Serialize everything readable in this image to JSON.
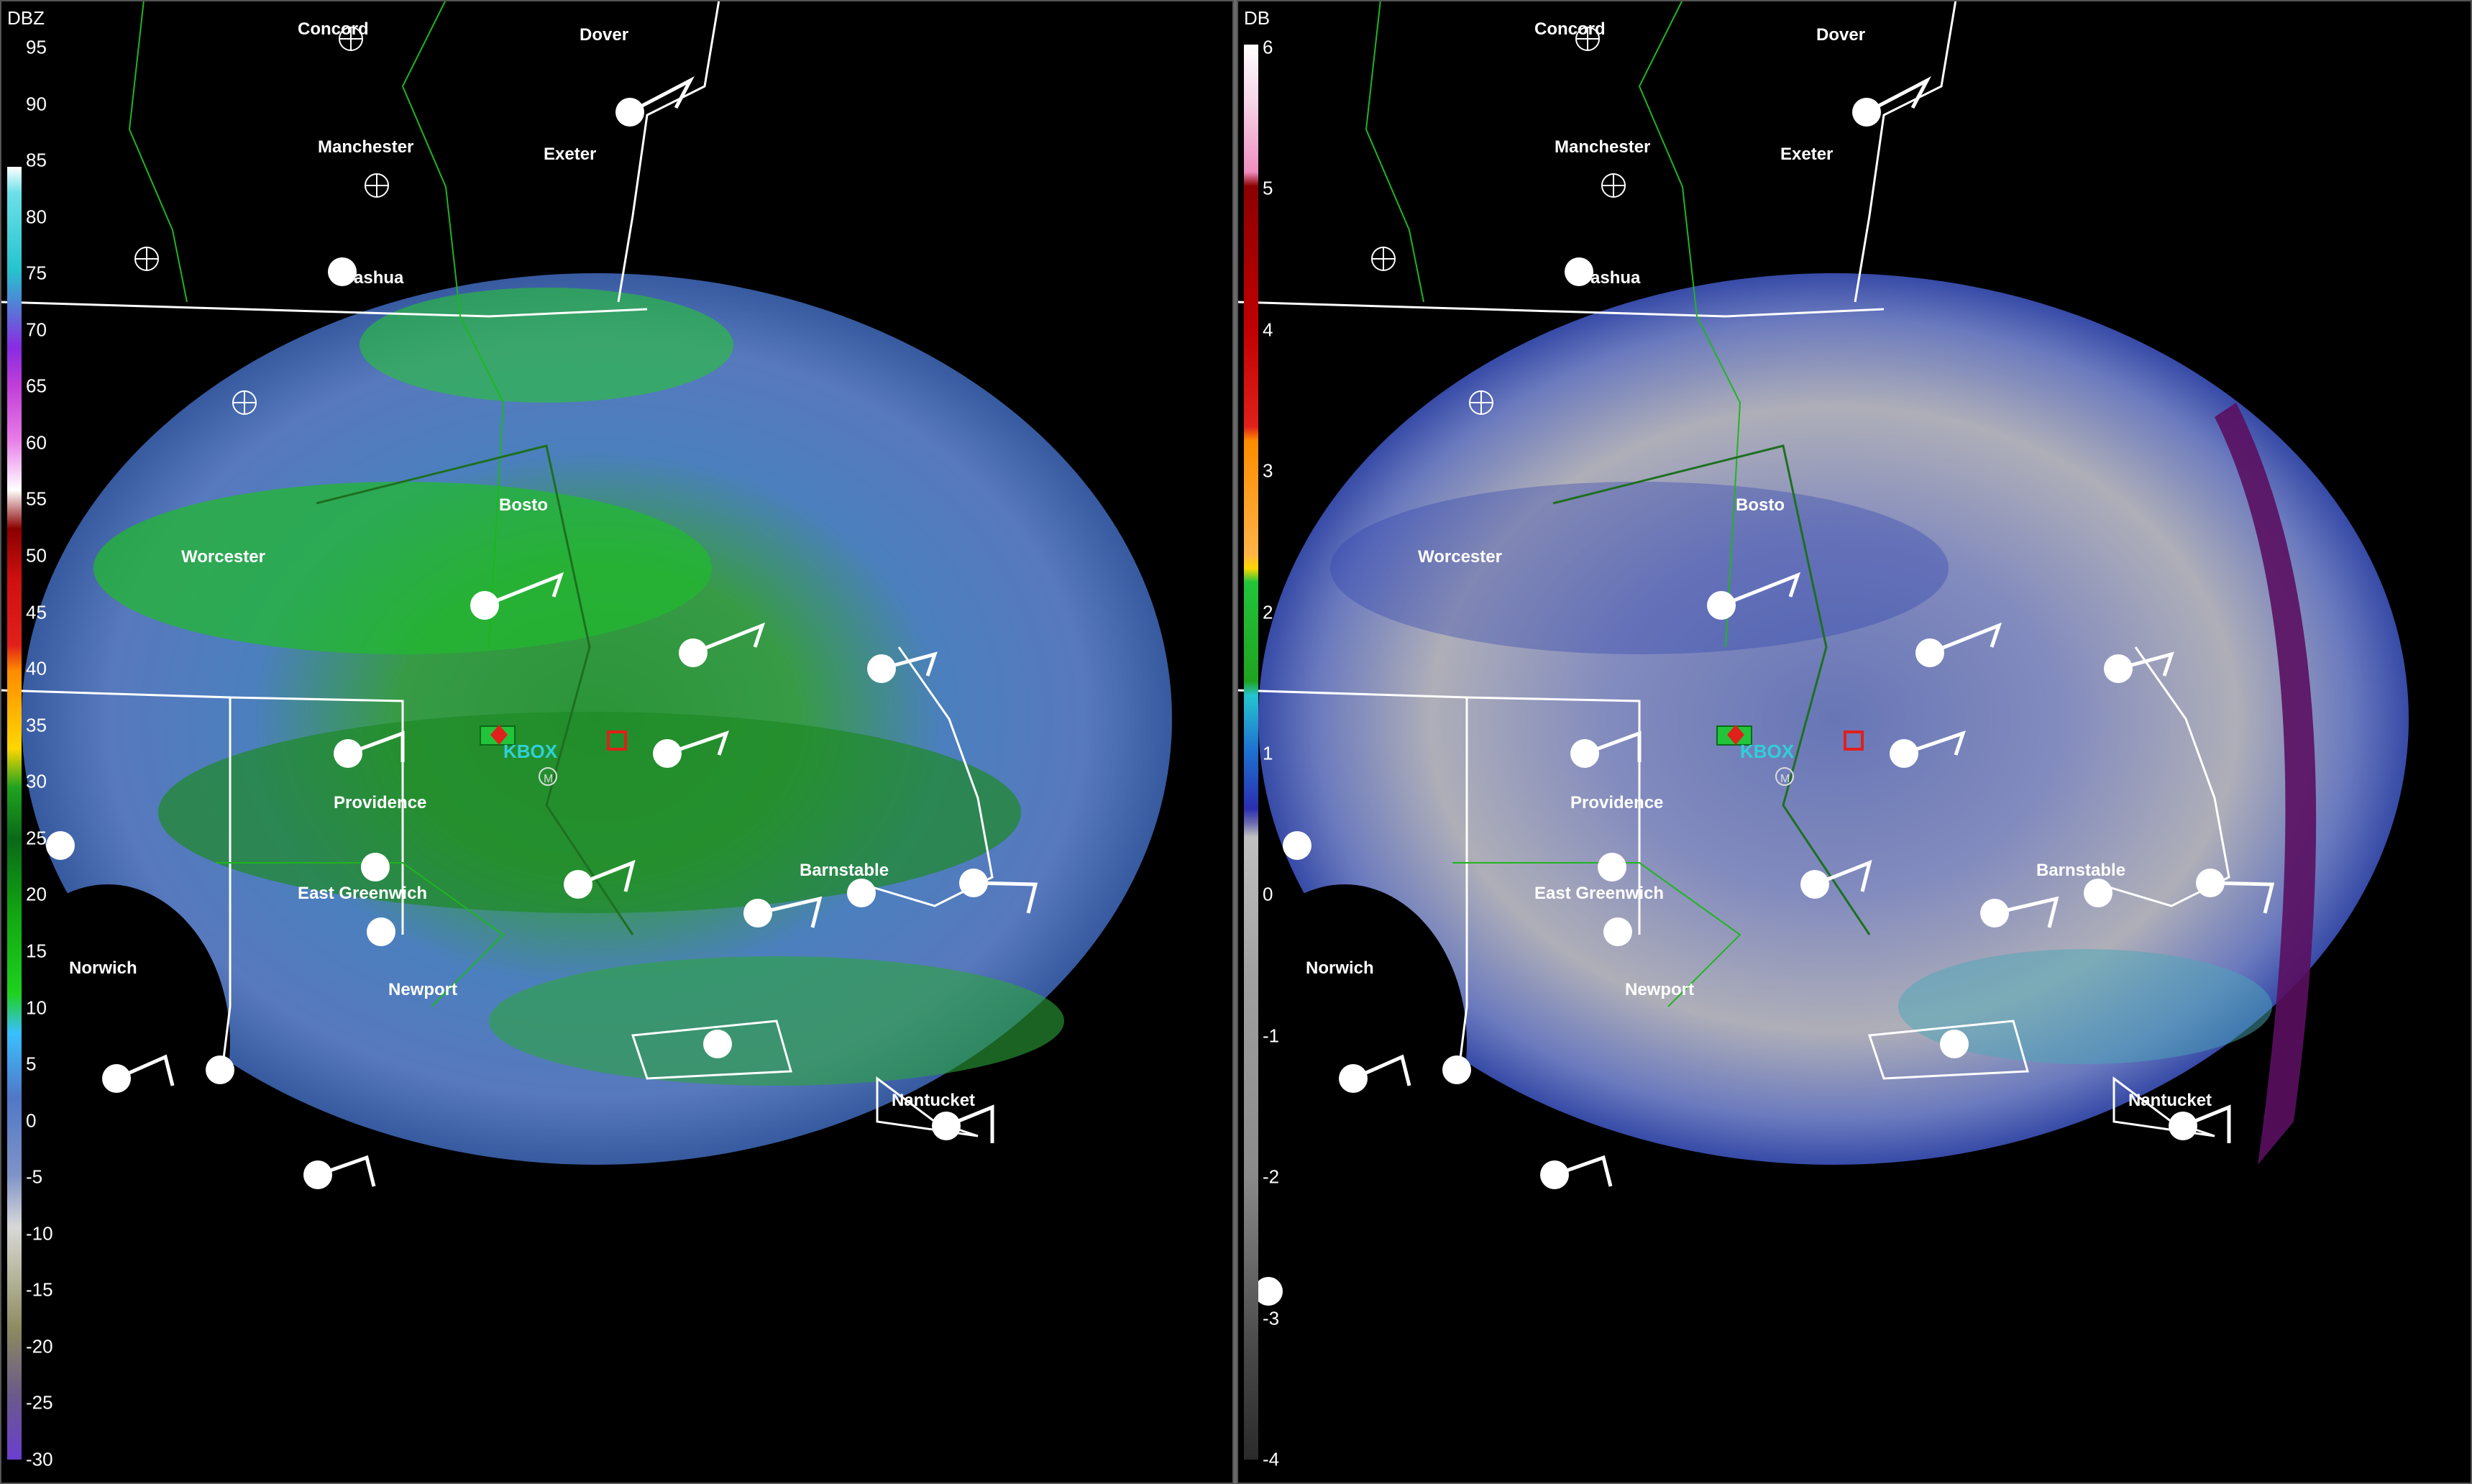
{
  "left_panel": {
    "legend_title": "DBZ",
    "legend_ticks": [
      "95",
      "90",
      "85",
      "80",
      "75",
      "70",
      "65",
      "60",
      "55",
      "50",
      "45",
      "40",
      "35",
      "30",
      "25",
      "20",
      "15",
      "10",
      "5",
      "0",
      "-5",
      "-10",
      "-15",
      "-20",
      "-25",
      "-30"
    ]
  },
  "right_panel": {
    "legend_title": "DB",
    "legend_ticks": [
      "6",
      "5",
      "4",
      "3",
      "2",
      "1",
      "0",
      "-1",
      "-2",
      "-3",
      "-4"
    ]
  },
  "cities": {
    "concord": "Concord",
    "dover": "Dover",
    "manchester": "Manchester",
    "exeter": "Exeter",
    "nashua": "ashua",
    "boston": "Bosto",
    "worcester": "Worcester",
    "providence": "Providence",
    "east_greenwich": "East Greenwich",
    "norwich": "Norwich",
    "newport": "Newport",
    "barnstable": "Barnstable",
    "nantucket": "Nantucket"
  },
  "radar_site": "KBOX",
  "marker_label": "M",
  "colors": {
    "background": "#000000",
    "state_border": "#ffffff",
    "county_border": "#1fb51f",
    "dbz_green": "#1fa31f",
    "dbz_blue": "#4a74c9",
    "db_gray": "#b8b8b8",
    "db_blue": "#2b3fb0",
    "db_purple": "#5a1060"
  }
}
